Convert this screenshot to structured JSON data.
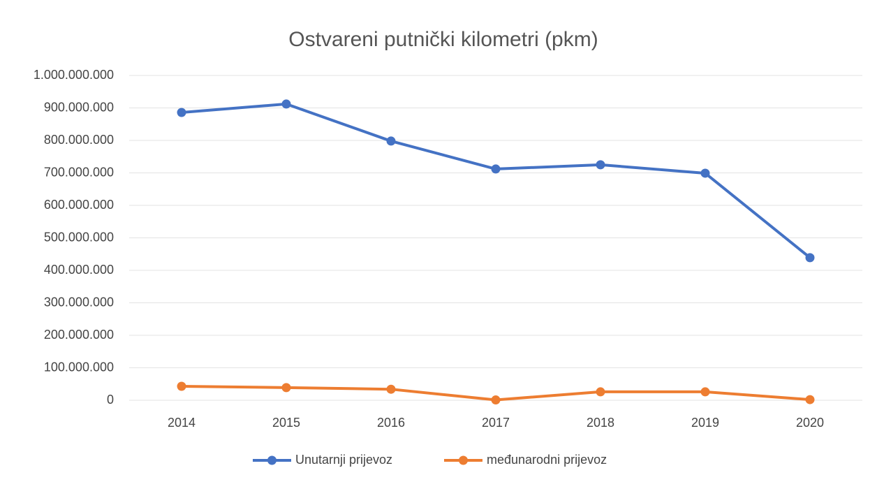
{
  "chart_data": {
    "type": "line",
    "title": "Ostvareni putnički kilometri (pkm)",
    "categories": [
      "2014",
      "2015",
      "2016",
      "2017",
      "2018",
      "2019",
      "2020"
    ],
    "series": [
      {
        "name": "Unutarnji prijevoz",
        "color": "#4472c4",
        "values": [
          886000000,
          912000000,
          798000000,
          712000000,
          725000000,
          699000000,
          439000000
        ]
      },
      {
        "name": "međunarodni prijevoz",
        "color": "#ed7d31",
        "values": [
          43000000,
          39000000,
          34000000,
          1000000,
          26000000,
          26000000,
          2000000
        ]
      }
    ],
    "ylim": [
      0,
      1000000000
    ],
    "yticks": [
      0,
      {
        "value": 100000000,
        "label": "100.000.000"
      },
      {
        "value": 200000000,
        "label": "200.000.000"
      },
      {
        "value": 300000000,
        "label": "300.000.000"
      },
      {
        "value": 400000000,
        "label": "400.000.000"
      },
      {
        "value": 500000000,
        "label": "500.000.000"
      },
      {
        "value": 600000000,
        "label": "600.000.000"
      },
      {
        "value": 700000000,
        "label": "700.000.000"
      },
      {
        "value": 800000000,
        "label": "800.000.000"
      },
      {
        "value": 900000000,
        "label": "900.000.000"
      },
      {
        "value": 1000000000,
        "label": "1.000.000.000"
      }
    ],
    "grid": true,
    "legend": "bottom"
  }
}
